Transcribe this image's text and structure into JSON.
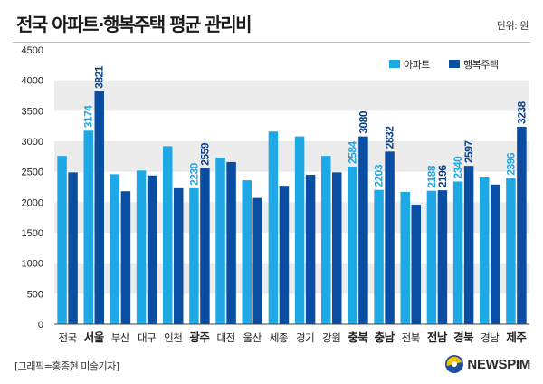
{
  "header": {
    "title": "전국 아파트·행복주택 평균 관리비",
    "unit": "단위: 원"
  },
  "footer": {
    "credit": "[그래픽=홍종현 미술기자]",
    "logo_text": "NEWSPIM"
  },
  "chart_data": {
    "type": "bar",
    "title": "전국 아파트·행복주택 평균 관리비",
    "xlabel": "",
    "ylabel": "",
    "ylim": [
      0,
      4500
    ],
    "yticks": [
      0,
      500,
      1000,
      1500,
      2000,
      2500,
      3000,
      3500,
      4000,
      4500
    ],
    "grid": "horizontal bands",
    "legend_position": "top-right",
    "categories": [
      "전국",
      "서울",
      "부산",
      "대구",
      "인천",
      "광주",
      "대전",
      "울산",
      "세종",
      "경기",
      "강원",
      "충북",
      "충남",
      "전북",
      "전남",
      "경북",
      "경남",
      "제주"
    ],
    "bold_categories": [
      "서울",
      "광주",
      "충북",
      "충남",
      "전남",
      "경북",
      "제주"
    ],
    "series": [
      {
        "name": "아파트",
        "color": "#1ea8e6",
        "label_color": "#1ea8e6",
        "values": [
          2760,
          3174,
          2460,
          2520,
          2920,
          2230,
          2730,
          2360,
          3160,
          3080,
          2760,
          2584,
          2203,
          2170,
          2188,
          2340,
          2420,
          2396
        ],
        "labels": [
          "",
          "3174",
          "",
          "",
          "",
          "2230",
          "",
          "",
          "",
          "",
          "",
          "2584",
          "2203",
          "",
          "2188",
          "2340",
          "",
          "2396"
        ]
      },
      {
        "name": "행복주택",
        "color": "#0a4ea3",
        "label_color": "#0a3f86",
        "values": [
          2490,
          3821,
          2180,
          2440,
          2230,
          2559,
          2660,
          2070,
          2270,
          2450,
          2490,
          3080,
          2832,
          1960,
          2196,
          2597,
          2290,
          3238
        ],
        "labels": [
          "",
          "3821",
          "",
          "",
          "",
          "2559",
          "",
          "",
          "",
          "",
          "",
          "3080",
          "2832",
          "",
          "2196",
          "2597",
          "",
          "3238"
        ]
      }
    ]
  }
}
